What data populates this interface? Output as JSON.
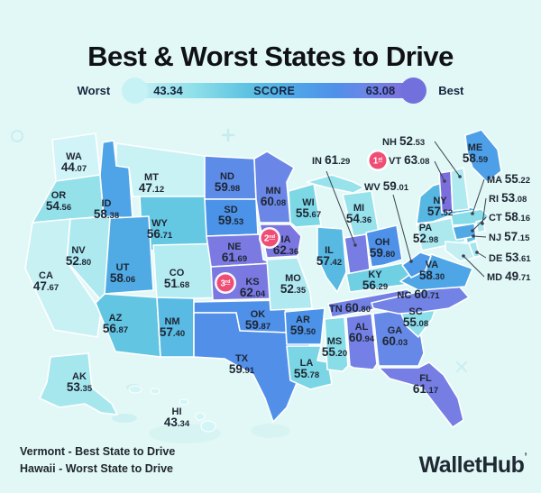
{
  "title": "Best & Worst States to Drive",
  "legend": {
    "worst": "Worst",
    "best": "Best",
    "bar_label": "SCORE",
    "min_score": "43.34",
    "max_score": "63.08"
  },
  "footer": {
    "best_state": "Vermont",
    "best_desc": "- Best State to Drive",
    "worst_state": "Hawaii",
    "worst_desc": "- Worst State to Drive"
  },
  "brand": "WalletHub",
  "colors": {
    "background": "#e2f8f6",
    "badge_pink": "#ef4d73",
    "text_dark": "#1e2633",
    "leader_line": "#39404d",
    "legend_dot_worst": "#c7f2f5",
    "legend_dot_best": "#7270dc",
    "scale": [
      [
        43.3,
        "#d2f5f7"
      ],
      [
        50,
        "#c2eff3"
      ],
      [
        53,
        "#abe9ef"
      ],
      [
        55,
        "#8edfe9"
      ],
      [
        56,
        "#75d4e4"
      ],
      [
        57,
        "#5fc3e2"
      ],
      [
        57.8,
        "#52b0e4"
      ],
      [
        58.6,
        "#4da0e7"
      ],
      [
        59.5,
        "#4b93e9"
      ],
      [
        59.9,
        "#4f90e9"
      ],
      [
        60.05,
        "#6a87e7"
      ],
      [
        60.8,
        "#7381e5"
      ],
      [
        61.7,
        "#7a7ae2"
      ],
      [
        62.4,
        "#7b76e0"
      ],
      [
        63.1,
        "#7a6edd"
      ]
    ]
  },
  "badges": [
    {
      "rank": "1",
      "suffix": "st",
      "state": "VT"
    },
    {
      "rank": "2",
      "suffix": "nd",
      "state": "IA"
    },
    {
      "rank": "3",
      "suffix": "rd",
      "state": "KS"
    }
  ],
  "map": {
    "type": "choropleth",
    "states": [
      {
        "abbr": "WA",
        "score": "44.07"
      },
      {
        "abbr": "OR",
        "score": "54.56"
      },
      {
        "abbr": "CA",
        "score": "47.67"
      },
      {
        "abbr": "NV",
        "score": "52.80"
      },
      {
        "abbr": "ID",
        "score": "58.38"
      },
      {
        "abbr": "MT",
        "score": "47.12"
      },
      {
        "abbr": "WY",
        "score": "56.71"
      },
      {
        "abbr": "UT",
        "score": "58.06"
      },
      {
        "abbr": "CO",
        "score": "51.68"
      },
      {
        "abbr": "AZ",
        "score": "56.87"
      },
      {
        "abbr": "NM",
        "score": "57.40"
      },
      {
        "abbr": "ND",
        "score": "59.98"
      },
      {
        "abbr": "SD",
        "score": "59.53"
      },
      {
        "abbr": "NE",
        "score": "61.69"
      },
      {
        "abbr": "KS",
        "score": "62.04"
      },
      {
        "abbr": "OK",
        "score": "59.87"
      },
      {
        "abbr": "TX",
        "score": "59.91"
      },
      {
        "abbr": "MN",
        "score": "60.08"
      },
      {
        "abbr": "IA",
        "score": "62.36"
      },
      {
        "abbr": "MO",
        "score": "52.35"
      },
      {
        "abbr": "AR",
        "score": "59.50"
      },
      {
        "abbr": "LA",
        "score": "55.78"
      },
      {
        "abbr": "WI",
        "score": "55.67"
      },
      {
        "abbr": "IL",
        "score": "57.42"
      },
      {
        "abbr": "MI",
        "score": "54.36"
      },
      {
        "abbr": "IN",
        "score": "61.29"
      },
      {
        "abbr": "OH",
        "score": "59.80"
      },
      {
        "abbr": "KY",
        "score": "56.29"
      },
      {
        "abbr": "TN",
        "score": "60.80"
      },
      {
        "abbr": "MS",
        "score": "55.20"
      },
      {
        "abbr": "AL",
        "score": "60.94"
      },
      {
        "abbr": "GA",
        "score": "60.03"
      },
      {
        "abbr": "FL",
        "score": "61.17"
      },
      {
        "abbr": "SC",
        "score": "55.08"
      },
      {
        "abbr": "NC",
        "score": "60.71"
      },
      {
        "abbr": "VA",
        "score": "58.30"
      },
      {
        "abbr": "WV",
        "score": "59.01"
      },
      {
        "abbr": "NY",
        "score": "57.52"
      },
      {
        "abbr": "PA",
        "score": "52.98"
      },
      {
        "abbr": "NJ",
        "score": "57.15"
      },
      {
        "abbr": "VT",
        "score": "63.08"
      },
      {
        "abbr": "NH",
        "score": "52.53"
      },
      {
        "abbr": "ME",
        "score": "58.59"
      },
      {
        "abbr": "MA",
        "score": "55.22"
      },
      {
        "abbr": "RI",
        "score": "53.08"
      },
      {
        "abbr": "CT",
        "score": "58.16"
      },
      {
        "abbr": "DE",
        "score": "53.61"
      },
      {
        "abbr": "MD",
        "score": "49.71"
      },
      {
        "abbr": "AK",
        "score": "53.35"
      },
      {
        "abbr": "HI",
        "score": "43.34"
      }
    ]
  }
}
